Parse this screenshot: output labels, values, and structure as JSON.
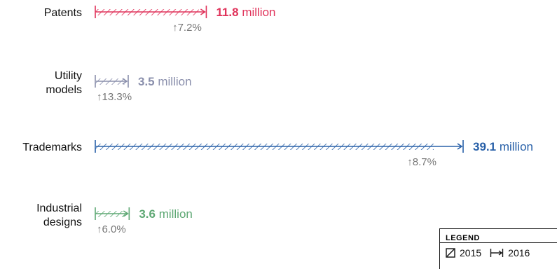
{
  "chart_data": {
    "type": "bar",
    "unit": "million",
    "categories": [
      {
        "label_lines": [
          "Patents"
        ],
        "value_2016": 11.8,
        "value_text": "11.8",
        "growth": "7.2%",
        "color": "#e0325a"
      },
      {
        "label_lines": [
          "Utility",
          "models"
        ],
        "value_2016": 3.5,
        "value_text": "3.5",
        "growth": "13.3%",
        "color": "#8a8fac"
      },
      {
        "label_lines": [
          "Trademarks"
        ],
        "value_2016": 39.1,
        "value_text": "39.1",
        "growth": "8.7%",
        "color": "#2860a8"
      },
      {
        "label_lines": [
          "Industrial",
          "designs"
        ],
        "value_2016": 3.6,
        "value_text": "3.6",
        "growth": "6.0%",
        "color": "#5ea874"
      }
    ],
    "growth_arrow": "↑",
    "legend": {
      "title": "LEGEND",
      "items": [
        {
          "label": "2015",
          "style": "hatched-box"
        },
        {
          "label": "2016",
          "style": "arrow-span"
        }
      ]
    }
  }
}
